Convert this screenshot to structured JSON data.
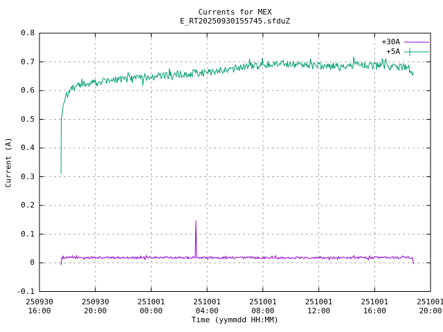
{
  "chart_data": {
    "type": "line",
    "title": "Currents for MEX",
    "subtitle": "E_RT20250930155745.sfduZ",
    "xlabel": "Time (yymmdd HH:MM)",
    "ylabel": "Current (A)",
    "ylim": [
      -0.1,
      0.8
    ],
    "xlim_hours": [
      0,
      28
    ],
    "grid": true,
    "grid_color": "#a8a8a8",
    "axis_color": "#000000",
    "background_color": "#ffffff",
    "legend_position": "top-right-inside",
    "y_ticks": [
      {
        "value": 0.8,
        "label": "0.8"
      },
      {
        "value": 0.7,
        "label": "0.7"
      },
      {
        "value": 0.6,
        "label": "0.6"
      },
      {
        "value": 0.5,
        "label": "0.5"
      },
      {
        "value": 0.4,
        "label": "0.4"
      },
      {
        "value": 0.3,
        "label": "0.3"
      },
      {
        "value": 0.2,
        "label": "0.2"
      },
      {
        "value": 0.1,
        "label": "0.1"
      },
      {
        "value": 0.0,
        "label": "0"
      },
      {
        "value": -0.1,
        "label": "-0.1"
      }
    ],
    "x_ticks": [
      {
        "hours": 0,
        "date": "250930",
        "time": "16:00"
      },
      {
        "hours": 4,
        "date": "250930",
        "time": "20:00"
      },
      {
        "hours": 8,
        "date": "251001",
        "time": "00:00"
      },
      {
        "hours": 12,
        "date": "251001",
        "time": "04:00"
      },
      {
        "hours": 16,
        "date": "251001",
        "time": "08:00"
      },
      {
        "hours": 20,
        "date": "251001",
        "time": "12:00"
      },
      {
        "hours": 24,
        "date": "251001",
        "time": "16:00"
      },
      {
        "hours": 28,
        "date": "251001",
        "time": "20:00"
      }
    ],
    "series": [
      {
        "name": "+30A",
        "color": "#9400d3",
        "legend_marker": "line",
        "noise_amplitude": 0.0035,
        "points": [
          [
            1.54,
            -0.008
          ],
          [
            1.6,
            0.018
          ],
          [
            11.15,
            0.018
          ],
          [
            11.2,
            0.147
          ],
          [
            11.25,
            0.018
          ],
          [
            26.7,
            0.018
          ],
          [
            26.78,
            -0.005
          ]
        ]
      },
      {
        "name": "+5A",
        "color": "#009e73",
        "legend_marker": "line-plus",
        "noise_amplitude": 0.013,
        "points": [
          [
            1.54,
            0.31
          ],
          [
            1.56,
            0.5
          ],
          [
            1.7,
            0.55
          ],
          [
            2.1,
            0.6
          ],
          [
            2.6,
            0.615
          ],
          [
            3.6,
            0.625
          ],
          [
            5.1,
            0.635
          ],
          [
            7.1,
            0.645
          ],
          [
            9.6,
            0.655
          ],
          [
            12.5,
            0.665
          ],
          [
            15.0,
            0.685
          ],
          [
            17.0,
            0.695
          ],
          [
            18.5,
            0.69
          ],
          [
            20.5,
            0.685
          ],
          [
            23.0,
            0.69
          ],
          [
            25.0,
            0.685
          ],
          [
            26.4,
            0.68
          ],
          [
            26.78,
            0.663
          ]
        ]
      }
    ]
  }
}
